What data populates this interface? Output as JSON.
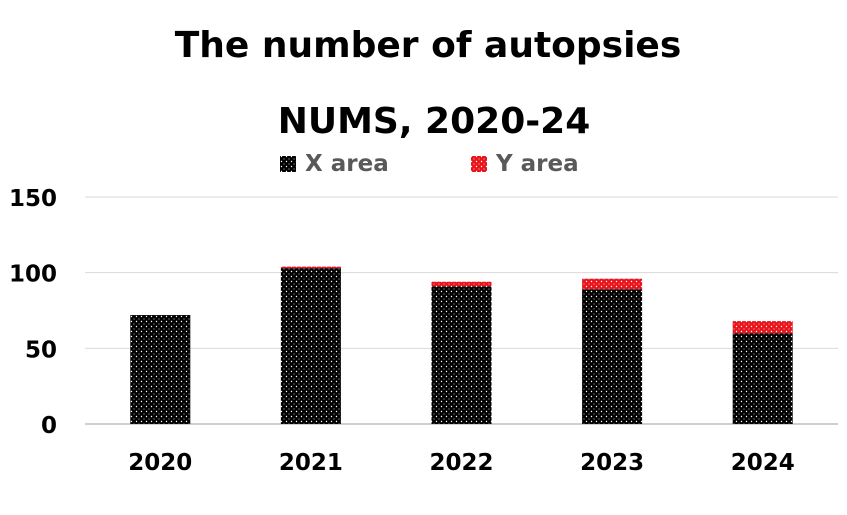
{
  "chart_data": {
    "type": "bar",
    "stacked": true,
    "title": "The number of autopsies",
    "subtitle": "NUMS, 2020-24",
    "categories": [
      "2020",
      "2021",
      "2022",
      "2023",
      "2024"
    ],
    "series": [
      {
        "name": "X area",
        "values": [
          72,
          103,
          91,
          89,
          60
        ]
      },
      {
        "name": "Y area",
        "values": [
          0,
          1,
          3,
          7,
          8
        ]
      }
    ],
    "ylim": [
      0,
      150
    ],
    "yticks": [
      "0",
      "50",
      "100",
      "150"
    ],
    "grid": true,
    "legend_position": "top",
    "colors": {
      "x_area": "#000000",
      "y_area": "#e8141b",
      "grid": "#d9d9d9",
      "axis": "#bfbfbf",
      "text": "#000000",
      "legend_text": "#595959"
    }
  }
}
